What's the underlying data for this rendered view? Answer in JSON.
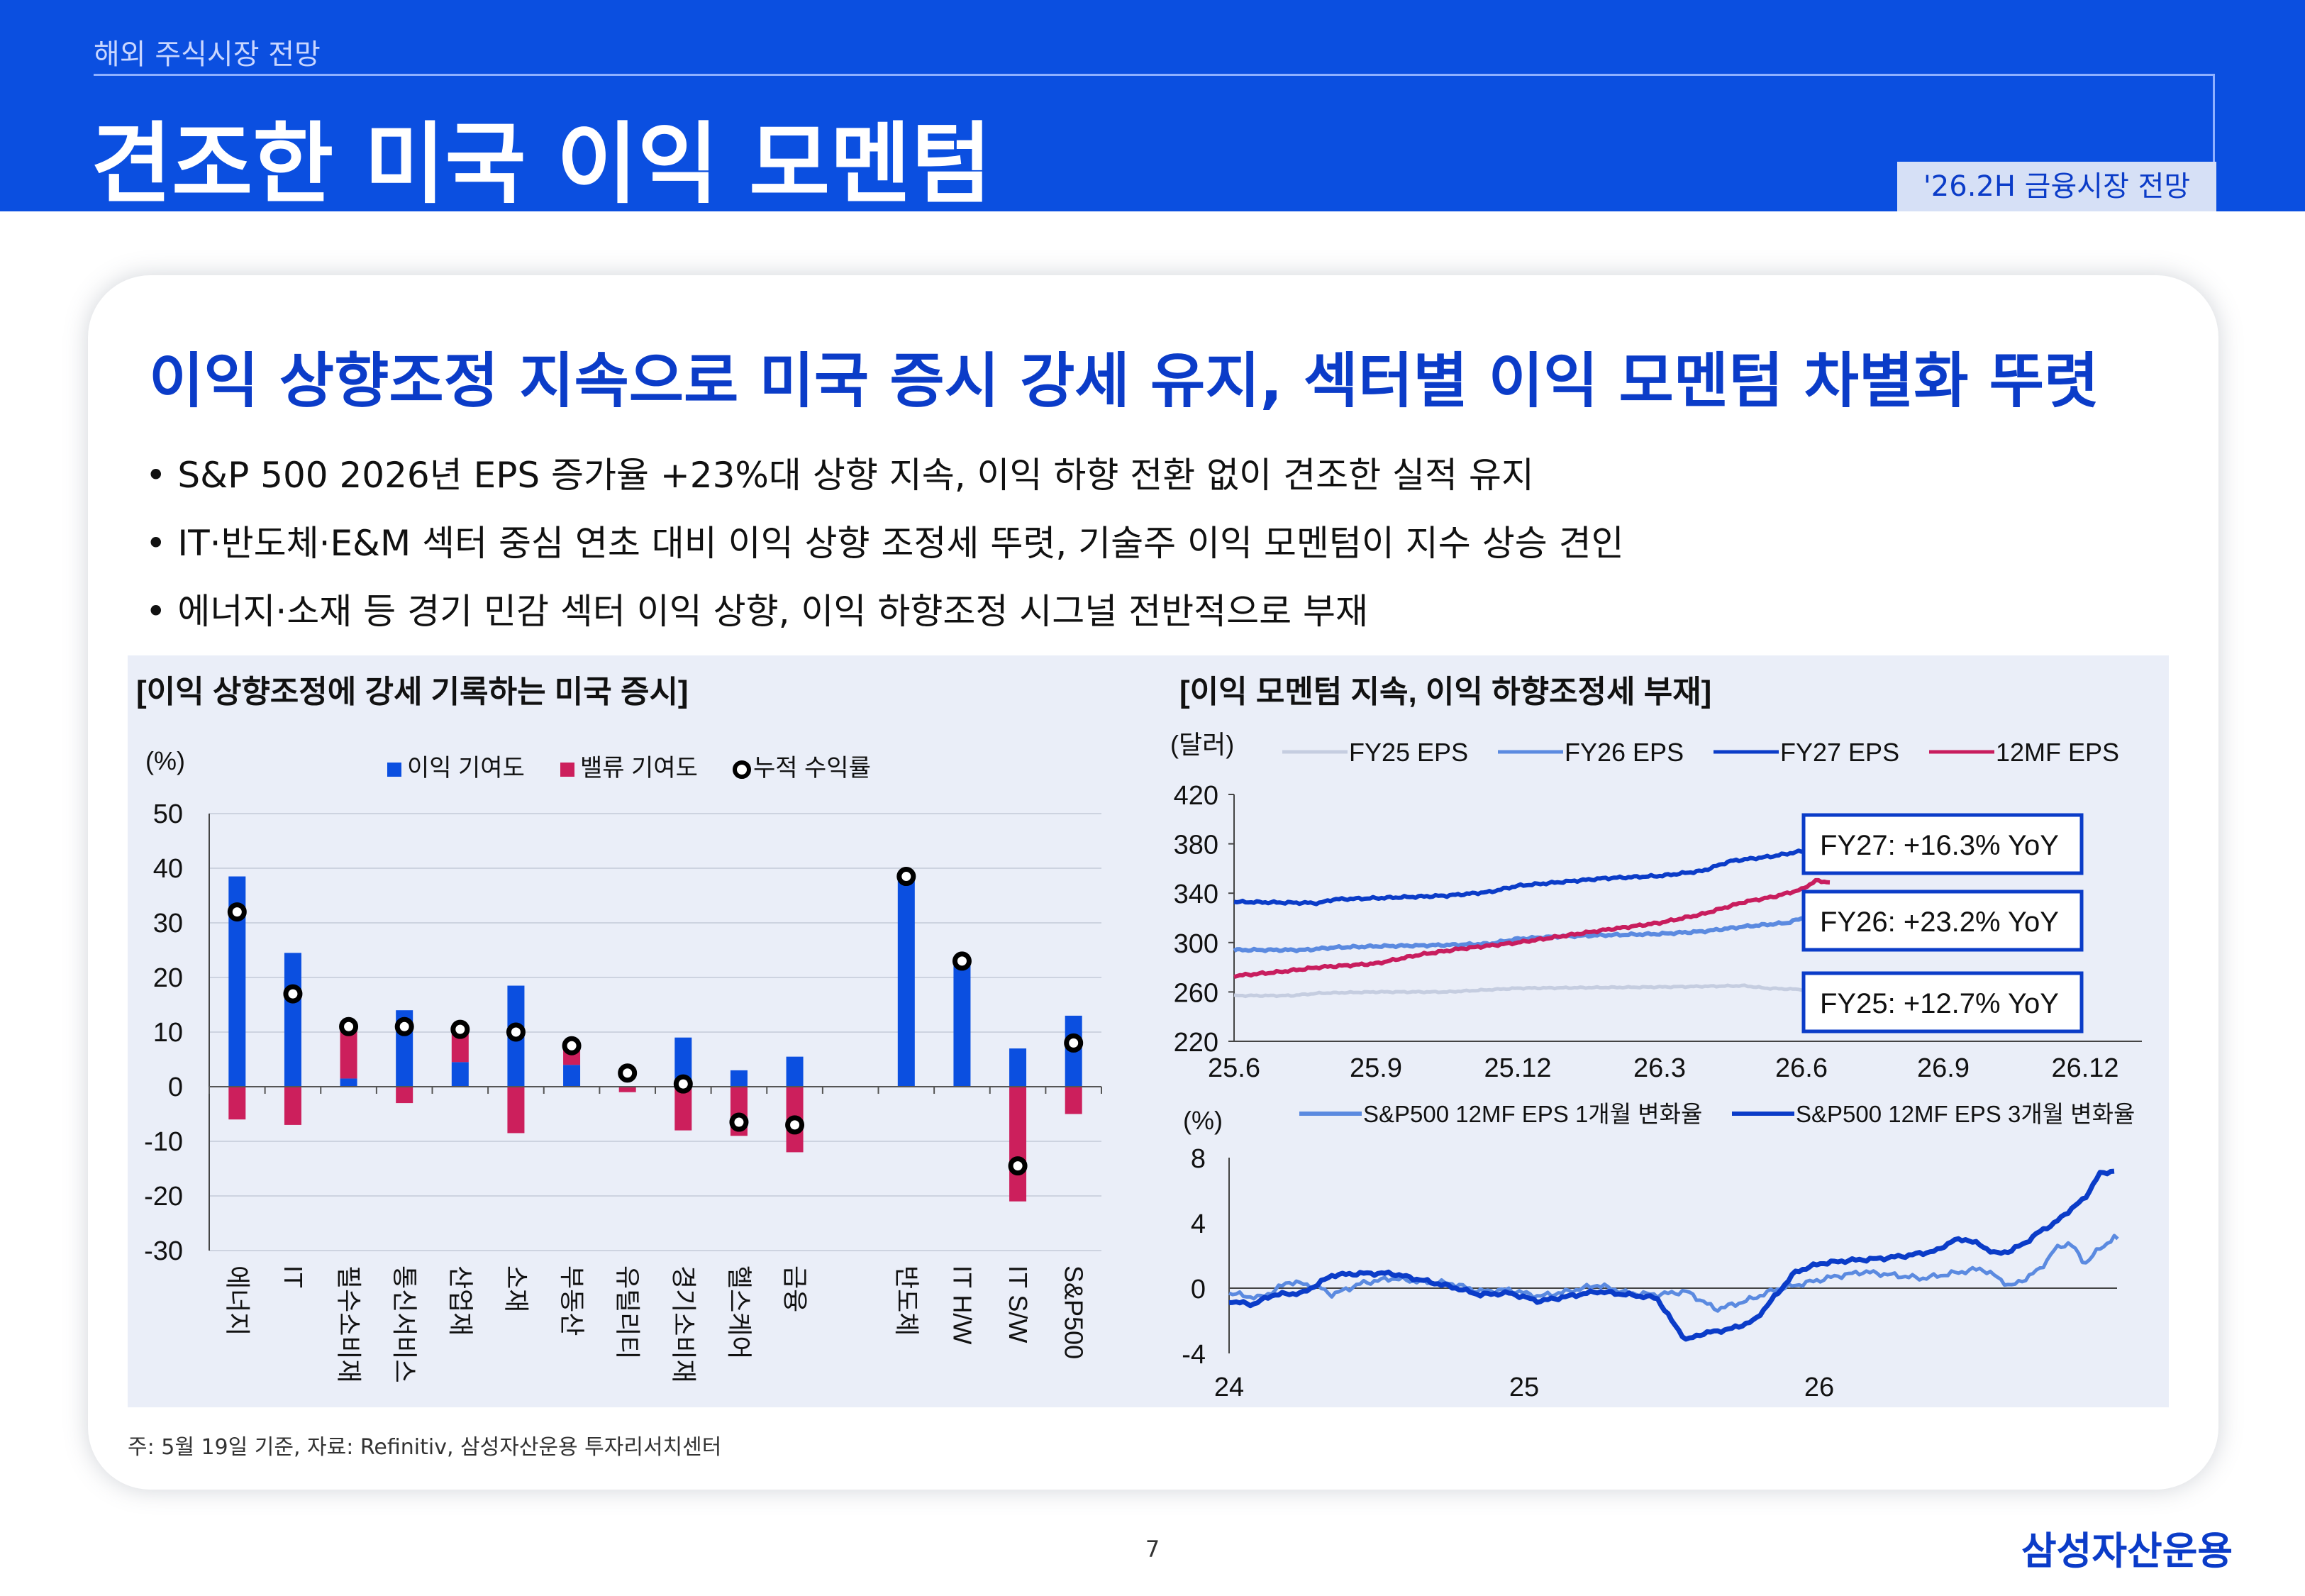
{
  "header": {
    "kicker": "해외 주식시장 전망",
    "title": "견조한 미국 이익 모멘텀",
    "tag": "'26.2H 금융시장 전망"
  },
  "headline": "이익 상향조정 지속으로 미국 증시 강세 유지, 섹터별 이익 모멘텀 차별화 뚜렷",
  "bullets": [
    "• S&P 500 2026년 EPS 증가율 +23%대 상향 지속, 이익 하향 전환 없이 견조한 실적 유지",
    "• IT·반도체·E&M 섹터 중심 연초 대비 이익 상향 조정세 뚜렷, 기술주 이익 모멘텀이 지수 상승 견인",
    "• 에너지·소재 등 경기 민감 섹터 이익 상향, 이익 하향조정 시그널 전반적으로 부재"
  ],
  "footnote": "주: 5월 19일 기준, 자료: Refinitiv, 삼성자산운용 투자리서치센터",
  "page_number": "7",
  "logo": "삼성자산운용",
  "colors": {
    "brand_blue": "#0b4fe0",
    "earnings_bar": "#0b4fe0",
    "valuation_bar": "#cc1f5c",
    "fy25": "#c5cde0",
    "fy26": "#5b8ae0",
    "fy27": "#0b3cc8",
    "mf12": "#c81d5e"
  },
  "chart_data": [
    {
      "type": "bar",
      "title": "[이익 상향조정에 강세 기록하는 미국 증시]",
      "ylabel": "(%)",
      "ylim": [
        -30,
        50
      ],
      "yticks": [
        "50",
        "40",
        "30",
        "20",
        "10",
        "0",
        "-10",
        "-20",
        "-30"
      ],
      "categories": [
        "에너지",
        "IT",
        "필수소비재",
        "통신서비스",
        "산업재",
        "소재",
        "부동산",
        "유틸리티",
        "경기소비재",
        "헬스케어",
        "금융",
        "반도체",
        "IT H/W",
        "IT S/W",
        "S&P500"
      ],
      "slots": [
        0,
        1,
        2,
        3,
        4,
        5,
        6,
        7,
        8,
        9,
        10,
        12,
        13,
        14,
        15
      ],
      "series": [
        {
          "name": "이익 기여도",
          "kind": "bar",
          "values": [
            38.5,
            24.5,
            1.5,
            14,
            4.5,
            18.5,
            4,
            0,
            9,
            3,
            5.5,
            38.5,
            23,
            7,
            13
          ]
        },
        {
          "name": "밸류 기여도",
          "kind": "bar",
          "values": [
            -6,
            -7,
            9.5,
            -3,
            6,
            -8.5,
            3.5,
            -1,
            -8,
            -9,
            -12,
            0,
            0,
            -21,
            -5
          ]
        },
        {
          "name": "누적 수익률",
          "kind": "marker",
          "values": [
            32,
            17,
            11,
            11,
            10.5,
            10,
            7.5,
            2.5,
            0.5,
            -6.5,
            -7,
            38.5,
            23,
            -14.5,
            8
          ]
        }
      ]
    },
    {
      "type": "line",
      "title": "[이익 모멘텀 지속, 이익 하향조정세 부재]",
      "ylabel": "(달러)",
      "ylim": [
        220,
        420
      ],
      "yticks": [
        420,
        380,
        340,
        300,
        260,
        220
      ],
      "xticks": [
        "25.6",
        "25.9",
        "25.12",
        "26.3",
        "26.6",
        "26.9",
        "26.12"
      ],
      "series": [
        {
          "name": "FY25 EPS",
          "anchors": [
            [
              0,
              257
            ],
            [
              0.4,
              257
            ],
            [
              0.6,
              259
            ],
            [
              1.0,
              260
            ],
            [
              1.5,
              260
            ],
            [
              2.0,
              263
            ],
            [
              3.0,
              264
            ],
            [
              3.6,
              265
            ],
            [
              3.75,
              263
            ],
            [
              4.0,
              262
            ],
            [
              4.2,
              262
            ]
          ]
        },
        {
          "name": "FY26 EPS",
          "anchors": [
            [
              0,
              294
            ],
            [
              0.5,
              294
            ],
            [
              0.7,
              296
            ],
            [
              1.0,
              297
            ],
            [
              1.5,
              298
            ],
            [
              1.8,
              299
            ],
            [
              2.0,
              303
            ],
            [
              2.3,
              305
            ],
            [
              2.6,
              306
            ],
            [
              3.0,
              307
            ],
            [
              3.3,
              309
            ],
            [
              3.6,
              313
            ],
            [
              3.9,
              316
            ],
            [
              4.1,
              323
            ],
            [
              4.2,
              322
            ]
          ]
        },
        {
          "name": "FY27 EPS",
          "anchors": [
            [
              0,
              333
            ],
            [
              0.6,
              332
            ],
            [
              0.7,
              335
            ],
            [
              1.0,
              336
            ],
            [
              1.5,
              338
            ],
            [
              1.8,
              341
            ],
            [
              2.0,
              346
            ],
            [
              2.3,
              349
            ],
            [
              2.6,
              352
            ],
            [
              3.0,
              354
            ],
            [
              3.3,
              358
            ],
            [
              3.5,
              366
            ],
            [
              3.8,
              370
            ],
            [
              4.0,
              374
            ],
            [
              4.1,
              378
            ],
            [
              4.2,
              379
            ]
          ]
        },
        {
          "name": "12MF EPS",
          "anchors": [
            [
              0,
              273
            ],
            [
              0.3,
              276
            ],
            [
              0.6,
              280
            ],
            [
              1.0,
              283
            ],
            [
              1.3,
              290
            ],
            [
              1.6,
              295
            ],
            [
              2.0,
              300
            ],
            [
              2.3,
              305
            ],
            [
              2.6,
              310
            ],
            [
              3.0,
              316
            ],
            [
              3.3,
              323
            ],
            [
              3.6,
              333
            ],
            [
              3.8,
              337
            ],
            [
              4.0,
              343
            ],
            [
              4.1,
              350
            ],
            [
              4.2,
              349
            ]
          ]
        }
      ],
      "annotations": [
        "FY27: +16.3% YoY",
        "FY26: +23.2% YoY",
        "FY25: +12.7% YoY"
      ]
    },
    {
      "type": "line",
      "ylabel": "(%)",
      "ylim": [
        -4,
        8
      ],
      "yticks": [
        8,
        4,
        0,
        -4
      ],
      "xticks": [
        "24",
        "25",
        "26"
      ],
      "series": [
        {
          "name": "S&P500 12MF EPS 1개월 변화율",
          "anchors": [
            [
              0,
              -0.3
            ],
            [
              0.1,
              -0.6
            ],
            [
              0.15,
              -0.2
            ],
            [
              0.2,
              0.4
            ],
            [
              0.3,
              0.1
            ],
            [
              0.35,
              -0.4
            ],
            [
              0.45,
              0.3
            ],
            [
              0.55,
              0.6
            ],
            [
              0.65,
              0.4
            ],
            [
              0.75,
              0.3
            ],
            [
              0.85,
              -0.2
            ],
            [
              0.95,
              -0.1
            ],
            [
              1.05,
              -0.5
            ],
            [
              1.15,
              -0.2
            ],
            [
              1.25,
              0.2
            ],
            [
              1.35,
              -0.3
            ],
            [
              1.45,
              -0.4
            ],
            [
              1.55,
              -0.2
            ],
            [
              1.65,
              -1.3
            ],
            [
              1.75,
              -0.8
            ],
            [
              1.85,
              -0.1
            ],
            [
              1.95,
              0.3
            ],
            [
              2.05,
              0.7
            ],
            [
              2.15,
              1.0
            ],
            [
              2.25,
              0.8
            ],
            [
              2.35,
              0.6
            ],
            [
              2.45,
              0.9
            ],
            [
              2.55,
              1.2
            ],
            [
              2.6,
              0.7
            ],
            [
              2.65,
              0.1
            ],
            [
              2.7,
              0.6
            ],
            [
              2.75,
              1.2
            ],
            [
              2.8,
              2.4
            ],
            [
              2.85,
              2.8
            ],
            [
              2.9,
              1.5
            ],
            [
              2.95,
              2.4
            ],
            [
              3.0,
              3.1
            ],
            [
              3.02,
              2.8
            ]
          ]
        },
        {
          "name": "S&P500 12MF EPS 3개월 변화율",
          "anchors": [
            [
              0,
              -0.8
            ],
            [
              0.08,
              -1.0
            ],
            [
              0.15,
              -0.4
            ],
            [
              0.25,
              -0.3
            ],
            [
              0.35,
              0.8
            ],
            [
              0.45,
              0.9
            ],
            [
              0.55,
              0.9
            ],
            [
              0.65,
              0.5
            ],
            [
              0.75,
              0.1
            ],
            [
              0.85,
              -0.4
            ],
            [
              0.95,
              -0.3
            ],
            [
              1.05,
              -0.8
            ],
            [
              1.15,
              -0.5
            ],
            [
              1.25,
              -0.2
            ],
            [
              1.35,
              -0.4
            ],
            [
              1.45,
              -0.6
            ],
            [
              1.5,
              -2.0
            ],
            [
              1.55,
              -3.2
            ],
            [
              1.6,
              -2.8
            ],
            [
              1.7,
              -2.5
            ],
            [
              1.78,
              -2.0
            ],
            [
              1.85,
              -0.5
            ],
            [
              1.92,
              1.0
            ],
            [
              2.0,
              1.5
            ],
            [
              2.1,
              1.7
            ],
            [
              2.2,
              1.8
            ],
            [
              2.3,
              2.0
            ],
            [
              2.4,
              2.3
            ],
            [
              2.45,
              2.9
            ],
            [
              2.5,
              3.0
            ],
            [
              2.55,
              2.6
            ],
            [
              2.6,
              2.1
            ],
            [
              2.65,
              2.3
            ],
            [
              2.7,
              2.8
            ],
            [
              2.75,
              3.5
            ],
            [
              2.8,
              4.0
            ],
            [
              2.85,
              4.8
            ],
            [
              2.9,
              5.5
            ],
            [
              2.95,
              7.0
            ],
            [
              3.0,
              7.2
            ]
          ]
        }
      ]
    }
  ]
}
